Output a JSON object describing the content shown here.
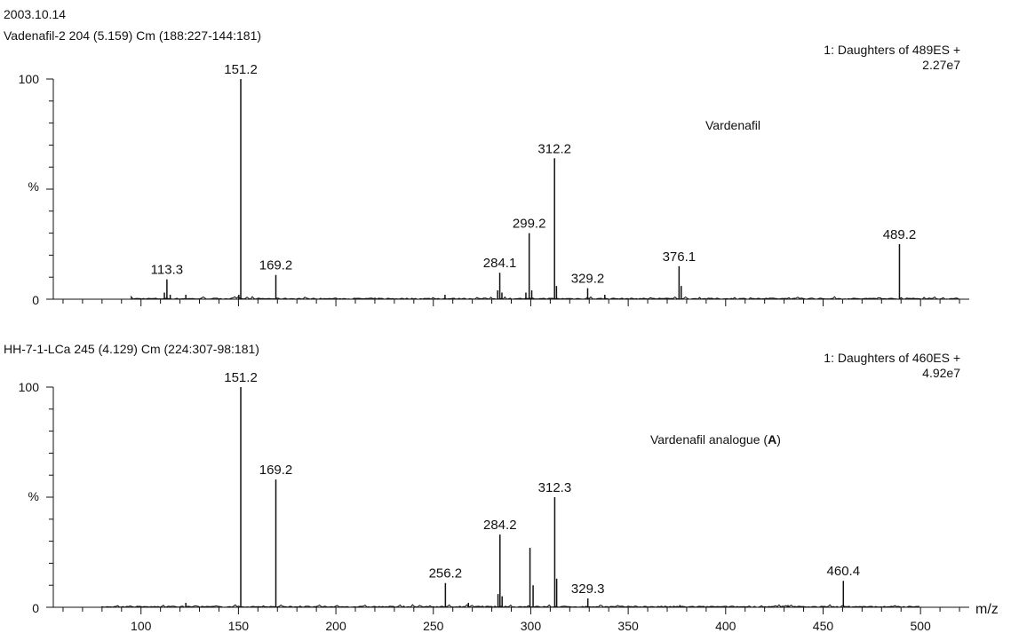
{
  "date": "2003.10.14",
  "xlabel": "m/z",
  "chart_data": [
    {
      "type": "bar",
      "header": "Vadenafil-2 204 (5.159) Cm (188:227-144:181)",
      "scan_line1": "1: Daughters of 489ES +",
      "scan_line2": "2.27e7",
      "compound_label": "Vardenafil",
      "compound_suffix": "",
      "ylabel": "%",
      "ytick_labels": [
        "100",
        "0"
      ],
      "ylim": [
        0,
        100
      ],
      "xlim": [
        55,
        525
      ],
      "xticks": [
        100,
        150,
        200,
        250,
        300,
        350,
        400,
        450,
        500
      ],
      "peaks": [
        {
          "mz": 113.3,
          "rel": 9,
          "label": "113.3"
        },
        {
          "mz": 151.2,
          "rel": 100,
          "label": "151.2"
        },
        {
          "mz": 169.2,
          "rel": 11,
          "label": "169.2"
        },
        {
          "mz": 284.1,
          "rel": 12,
          "label": "284.1"
        },
        {
          "mz": 299.2,
          "rel": 30,
          "label": "299.2"
        },
        {
          "mz": 312.2,
          "rel": 64,
          "label": "312.2"
        },
        {
          "mz": 329.2,
          "rel": 5,
          "label": "329.2"
        },
        {
          "mz": 376.1,
          "rel": 15,
          "label": "376.1"
        },
        {
          "mz": 489.2,
          "rel": 25,
          "label": "489.2"
        }
      ],
      "minor_peaks": [
        {
          "mz": 112.0,
          "rel": 3
        },
        {
          "mz": 115.0,
          "rel": 2
        },
        {
          "mz": 123.0,
          "rel": 2
        },
        {
          "mz": 150.2,
          "rel": 2
        },
        {
          "mz": 256.0,
          "rel": 2
        },
        {
          "mz": 283.0,
          "rel": 4
        },
        {
          "mz": 285.2,
          "rel": 3
        },
        {
          "mz": 297.5,
          "rel": 3
        },
        {
          "mz": 300.5,
          "rel": 4
        },
        {
          "mz": 313.2,
          "rel": 6
        },
        {
          "mz": 338.0,
          "rel": 2
        },
        {
          "mz": 377.2,
          "rel": 6
        }
      ]
    },
    {
      "type": "bar",
      "header": "HH-7-1-LCa 245 (4.129) Cm (224:307-98:181)",
      "scan_line1": "1: Daughters of 460ES +",
      "scan_line2": "4.92e7",
      "compound_label": "Vardenafil analogue (",
      "compound_bold": "A",
      "compound_suffix": ")",
      "ylabel": "%",
      "ytick_labels": [
        "100",
        "0"
      ],
      "ylim": [
        0,
        100
      ],
      "xlim": [
        55,
        525
      ],
      "xticks": [
        100,
        150,
        200,
        250,
        300,
        350,
        400,
        450,
        500
      ],
      "xtick_labels": [
        "100",
        "150",
        "200",
        "250",
        "300",
        "350",
        "400",
        "450",
        "500"
      ],
      "peaks": [
        {
          "mz": 151.2,
          "rel": 100,
          "label": "151.2"
        },
        {
          "mz": 169.2,
          "rel": 58,
          "label": "169.2"
        },
        {
          "mz": 256.2,
          "rel": 11,
          "label": "256.2"
        },
        {
          "mz": 284.2,
          "rel": 33,
          "label": "284.2"
        },
        {
          "mz": 299.6,
          "rel": 27,
          "label": ""
        },
        {
          "mz": 312.3,
          "rel": 50,
          "label": "312.3"
        },
        {
          "mz": 329.3,
          "rel": 4,
          "label": "329.3"
        },
        {
          "mz": 460.4,
          "rel": 12,
          "label": "460.4"
        }
      ],
      "minor_peaks": [
        {
          "mz": 123.0,
          "rel": 2
        },
        {
          "mz": 268.0,
          "rel": 2
        },
        {
          "mz": 283.2,
          "rel": 6
        },
        {
          "mz": 285.3,
          "rel": 5
        },
        {
          "mz": 301.2,
          "rel": 10
        },
        {
          "mz": 313.3,
          "rel": 13
        },
        {
          "mz": 376.5,
          "rel": 1
        },
        {
          "mz": 432.0,
          "rel": 1
        }
      ]
    }
  ]
}
